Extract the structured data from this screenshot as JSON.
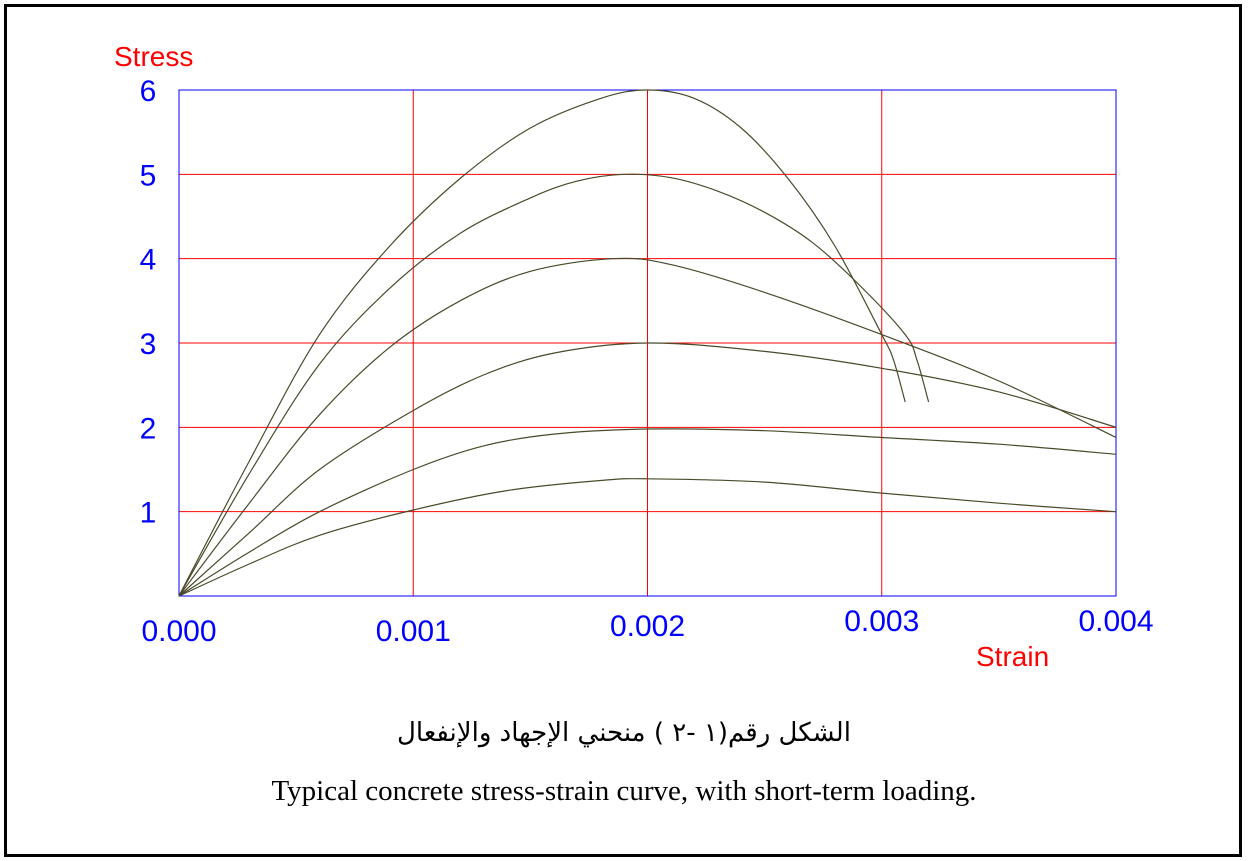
{
  "chart_data": {
    "type": "line",
    "xlabel": "Strain",
    "ylabel": "Stress",
    "xlim": [
      0,
      0.004
    ],
    "ylim": [
      0,
      6
    ],
    "x_ticks": [
      "0.000",
      "0.001",
      "0.002",
      "0.003",
      "0.004"
    ],
    "y_ticks": [
      "1",
      "2",
      "3",
      "4",
      "5",
      "6"
    ],
    "grid": true,
    "colors": {
      "grid": "#ff0000",
      "curve": "#4a4a2a",
      "tick_text": "#0000ff",
      "axis_title": "#ff0000",
      "frame": "#0000ff"
    },
    "series": [
      {
        "points": [
          [
            0,
            0
          ],
          [
            0.0003,
            1.6
          ],
          [
            0.0006,
            3.1
          ],
          [
            0.0009,
            4.15
          ],
          [
            0.0012,
            4.95
          ],
          [
            0.0015,
            5.55
          ],
          [
            0.0018,
            5.9
          ],
          [
            0.002,
            6.0
          ],
          [
            0.0022,
            5.9
          ],
          [
            0.0024,
            5.55
          ],
          [
            0.0026,
            4.95
          ],
          [
            0.0028,
            4.15
          ],
          [
            0.003,
            3.1
          ],
          [
            0.00305,
            2.8
          ],
          [
            0.0031,
            2.3
          ]
        ]
      },
      {
        "points": [
          [
            0,
            0
          ],
          [
            0.0003,
            1.45
          ],
          [
            0.0006,
            2.75
          ],
          [
            0.0009,
            3.65
          ],
          [
            0.0012,
            4.3
          ],
          [
            0.0015,
            4.72
          ],
          [
            0.0017,
            4.92
          ],
          [
            0.0019,
            5.0
          ],
          [
            0.0021,
            4.96
          ],
          [
            0.0023,
            4.8
          ],
          [
            0.0025,
            4.55
          ],
          [
            0.0027,
            4.2
          ],
          [
            0.0029,
            3.7
          ],
          [
            0.0031,
            3.1
          ],
          [
            0.00315,
            2.8
          ],
          [
            0.0032,
            2.3
          ]
        ]
      },
      {
        "points": [
          [
            0,
            0
          ],
          [
            0.0003,
            1.1
          ],
          [
            0.0006,
            2.15
          ],
          [
            0.0009,
            2.95
          ],
          [
            0.0012,
            3.5
          ],
          [
            0.0015,
            3.85
          ],
          [
            0.00185,
            4.0
          ],
          [
            0.0021,
            3.93
          ],
          [
            0.0025,
            3.6
          ],
          [
            0.003,
            3.1
          ],
          [
            0.0035,
            2.55
          ],
          [
            0.004,
            1.88
          ]
        ]
      },
      {
        "points": [
          [
            0,
            0
          ],
          [
            0.0003,
            0.75
          ],
          [
            0.0006,
            1.5
          ],
          [
            0.001,
            2.2
          ],
          [
            0.0013,
            2.62
          ],
          [
            0.0016,
            2.88
          ],
          [
            0.002,
            3.0
          ],
          [
            0.0025,
            2.9
          ],
          [
            0.003,
            2.7
          ],
          [
            0.0035,
            2.42
          ],
          [
            0.004,
            2.0
          ]
        ]
      },
      {
        "points": [
          [
            0,
            0
          ],
          [
            0.0003,
            0.52
          ],
          [
            0.0006,
            1.0
          ],
          [
            0.001,
            1.5
          ],
          [
            0.0013,
            1.78
          ],
          [
            0.0016,
            1.92
          ],
          [
            0.002,
            1.98
          ],
          [
            0.0025,
            1.96
          ],
          [
            0.003,
            1.88
          ],
          [
            0.0035,
            1.8
          ],
          [
            0.004,
            1.68
          ]
        ]
      },
      {
        "points": [
          [
            0,
            0
          ],
          [
            0.0003,
            0.38
          ],
          [
            0.0006,
            0.72
          ],
          [
            0.001,
            1.02
          ],
          [
            0.0014,
            1.25
          ],
          [
            0.0018,
            1.37
          ],
          [
            0.002,
            1.39
          ],
          [
            0.0025,
            1.35
          ],
          [
            0.003,
            1.22
          ],
          [
            0.0035,
            1.1
          ],
          [
            0.004,
            1.0
          ]
        ]
      }
    ]
  },
  "caption": {
    "arabic": "الشكل رقم(١  -٢ )  منحني الإجهاد والإنفعال",
    "english": "Typical concrete stress-strain curve, with short-term loading."
  }
}
